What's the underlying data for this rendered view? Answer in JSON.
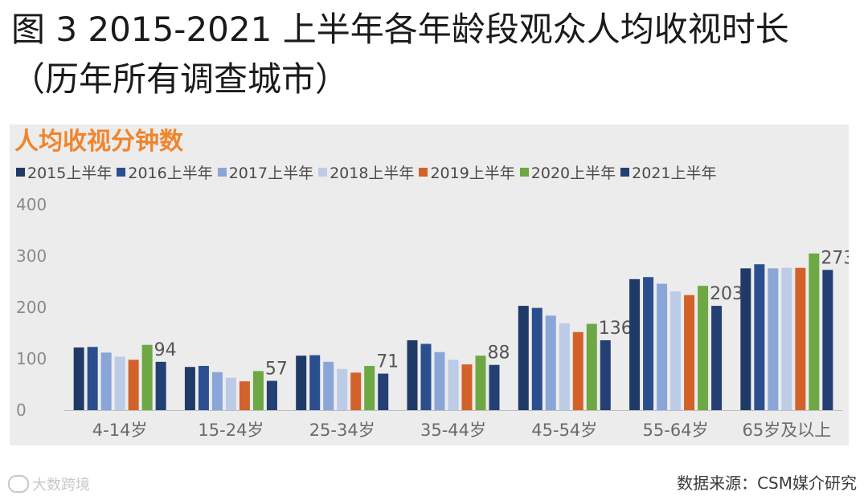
{
  "figure": {
    "title_line1": "图 3 2015-2021 上半年各年龄段观众人均收视时长",
    "title_line2": "（历年所有调查城市）"
  },
  "panel_title": "人均收视分钟数",
  "source": "数据来源：CSM媒介研究",
  "watermark": "大数跨境",
  "chart_data": {
    "type": "bar",
    "ylabel": "人均收视分钟数",
    "ylim": [
      0,
      400
    ],
    "yticks": [
      0,
      100,
      200,
      300,
      400
    ],
    "grid": false,
    "legend_position": "top",
    "categories": [
      "4-14岁",
      "15-24岁",
      "25-34岁",
      "35-44岁",
      "45-54岁",
      "55-64岁",
      "65岁及以上"
    ],
    "series": [
      {
        "name": "2015上半年",
        "color": "#1f3a66",
        "values": [
          122,
          84,
          106,
          136,
          203,
          255,
          276
        ]
      },
      {
        "name": "2016上半年",
        "color": "#2b4f8e",
        "values": [
          123,
          86,
          107,
          129,
          199,
          259,
          284
        ]
      },
      {
        "name": "2017上半年",
        "color": "#8aa6d8",
        "values": [
          112,
          74,
          94,
          113,
          184,
          246,
          276
        ]
      },
      {
        "name": "2018上半年",
        "color": "#bccbe6",
        "values": [
          104,
          63,
          80,
          98,
          169,
          231,
          277
        ]
      },
      {
        "name": "2019上半年",
        "color": "#d2622a",
        "values": [
          98,
          56,
          73,
          89,
          152,
          224,
          277
        ]
      },
      {
        "name": "2020上半年",
        "color": "#6ea844",
        "values": [
          127,
          76,
          86,
          106,
          168,
          242,
          305
        ]
      },
      {
        "name": "2021上半年",
        "color": "#243f74",
        "values": [
          94,
          57,
          71,
          88,
          136,
          203,
          273
        ]
      }
    ],
    "data_labels": {
      "series": "2021上半年",
      "values": [
        94,
        57,
        71,
        88,
        136,
        203,
        273
      ]
    }
  }
}
